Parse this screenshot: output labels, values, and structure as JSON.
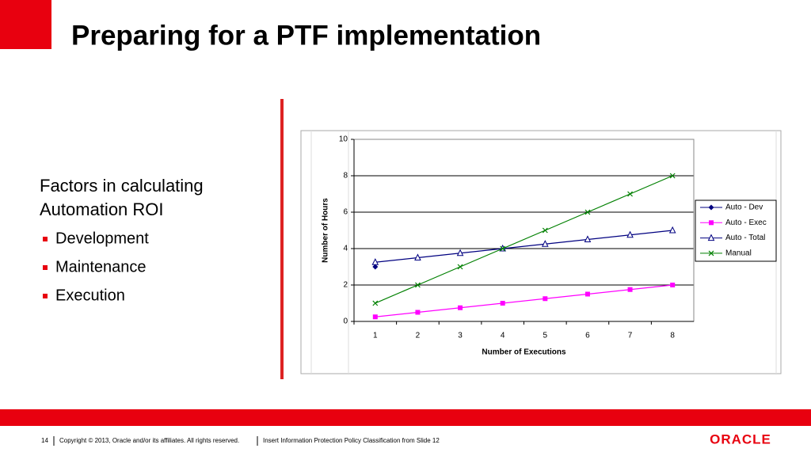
{
  "slide": {
    "title": "Preparing for a PTF implementation",
    "heading": "Factors in calculating Automation ROI",
    "bullets": [
      "Development",
      "Maintenance",
      "Execution"
    ],
    "footer": {
      "page": "14",
      "copyright": "Copyright © 2013, Oracle and/or its affiliates. All rights reserved.",
      "classification": "Insert Information Protection Policy Classification from Slide 12",
      "logo": "ORACLE"
    }
  },
  "chart_data": {
    "type": "line",
    "x_label": "Number of Executions",
    "y_label": "Number of Hours",
    "categories": [
      "1",
      "2",
      "3",
      "4",
      "5",
      "6",
      "7",
      "8"
    ],
    "series": [
      {
        "name": "Auto - Dev",
        "color": "#000080",
        "marker": "diamond",
        "values": [
          3,
          null,
          null,
          null,
          null,
          null,
          null,
          null
        ]
      },
      {
        "name": "Auto - Exec",
        "color": "#ff00ff",
        "marker": "square",
        "values": [
          0.25,
          0.5,
          0.75,
          1,
          1.25,
          1.5,
          1.75,
          2
        ]
      },
      {
        "name": "Auto - Total",
        "color": "#000080",
        "marker": "triangle",
        "values": [
          3.25,
          3.5,
          3.75,
          4,
          4.25,
          4.5,
          4.75,
          5
        ]
      },
      {
        "name": "Manual",
        "color": "#008000",
        "marker": "x",
        "values": [
          1,
          2,
          3,
          4,
          5,
          6,
          7,
          8
        ]
      }
    ],
    "ylim": [
      0,
      10
    ],
    "yticks": [
      0,
      2,
      4,
      6,
      8,
      10
    ],
    "grid": true,
    "legend": "right"
  }
}
